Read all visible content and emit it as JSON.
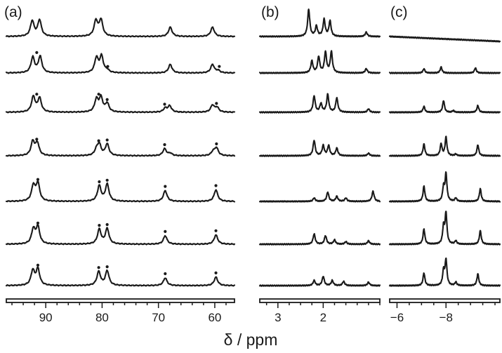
{
  "chart_data": [
    {
      "type": "line",
      "panel_label": "(a)",
      "x_range": [
        97,
        56.5
      ],
      "x_ticks": [
        90,
        80,
        70,
        60
      ],
      "tick_labels": [
        "90",
        "80",
        "70",
        "60"
      ],
      "series": [
        {
          "peaks": [
            [
              92.4,
              1.0
            ],
            [
              91.1,
              1.05
            ],
            [
              81.1,
              1.0
            ],
            [
              80.2,
              1.05
            ],
            [
              67.9,
              0.6
            ],
            [
              60.4,
              0.6
            ]
          ],
          "dots": []
        },
        {
          "peaks": [
            [
              92.3,
              1.0
            ],
            [
              91.0,
              1.05
            ],
            [
              81.0,
              0.95
            ],
            [
              80.1,
              1.05
            ],
            [
              79.1,
              0.15
            ],
            [
              67.9,
              0.55
            ],
            [
              60.4,
              0.55
            ],
            [
              59.4,
              0.15
            ]
          ],
          "dots": [
            91.6,
            79.0,
            59.2
          ]
        },
        {
          "peaks": [
            [
              92.2,
              1.0
            ],
            [
              91.1,
              0.9
            ],
            [
              81.0,
              0.8
            ],
            [
              80.2,
              0.9
            ],
            [
              79.1,
              0.55
            ],
            [
              68.8,
              0.25
            ],
            [
              68.0,
              0.4
            ],
            [
              60.4,
              0.45
            ],
            [
              59.6,
              0.3
            ]
          ],
          "dots": [
            91.6,
            80.6,
            79.1,
            68.9,
            59.7
          ]
        },
        {
          "peaks": [
            [
              92.3,
              0.9
            ],
            [
              91.5,
              0.8
            ],
            [
              81.0,
              0.35
            ],
            [
              80.5,
              0.7
            ],
            [
              79.1,
              0.75
            ],
            [
              68.9,
              0.45
            ],
            [
              67.9,
              0.15
            ],
            [
              60.3,
              0.25
            ],
            [
              59.7,
              0.5
            ]
          ],
          "dots": [
            91.6,
            80.6,
            79.1,
            68.9,
            59.7
          ]
        },
        {
          "peaks": [
            [
              92.2,
              1.0
            ],
            [
              91.4,
              1.15
            ],
            [
              80.5,
              1.0
            ],
            [
              79.1,
              1.1
            ],
            [
              68.8,
              0.7
            ],
            [
              59.8,
              0.75
            ]
          ],
          "dots": [
            91.4,
            80.5,
            79.1,
            68.8,
            59.8
          ]
        },
        {
          "peaks": [
            [
              92.2,
              0.95
            ],
            [
              91.4,
              1.1
            ],
            [
              80.5,
              0.95
            ],
            [
              79.1,
              1.0
            ],
            [
              68.8,
              0.55
            ],
            [
              59.8,
              0.6
            ]
          ],
          "dots": [
            91.4,
            80.5,
            79.1,
            68.8,
            59.8
          ]
        },
        {
          "peaks": [
            [
              92.3,
              0.95
            ],
            [
              91.4,
              1.05
            ],
            [
              80.6,
              0.9
            ],
            [
              79.1,
              0.95
            ],
            [
              68.8,
              0.5
            ],
            [
              59.8,
              0.55
            ]
          ],
          "dots": [
            91.4,
            80.6,
            79.1,
            68.8,
            59.8
          ]
        }
      ]
    },
    {
      "type": "line",
      "panel_label": "(b)",
      "x_range": [
        3.4,
        0.75
      ],
      "x_ticks": [
        3,
        2
      ],
      "tick_labels": [
        "3",
        "2"
      ],
      "series": [
        {
          "peaks": [
            [
              2.32,
              1.6
            ],
            [
              2.15,
              0.6
            ],
            [
              1.98,
              1.0
            ],
            [
              1.85,
              0.9
            ],
            [
              1.05,
              0.25
            ]
          ],
          "dots": []
        },
        {
          "peaks": [
            [
              2.25,
              0.7
            ],
            [
              2.1,
              0.95
            ],
            [
              1.95,
              1.2
            ],
            [
              1.82,
              1.25
            ],
            [
              1.05,
              0.25
            ]
          ],
          "dots": []
        },
        {
          "peaks": [
            [
              2.2,
              0.95
            ],
            [
              2.05,
              0.5
            ],
            [
              1.9,
              1.05
            ],
            [
              1.7,
              0.85
            ],
            [
              1.0,
              0.2
            ]
          ],
          "dots": []
        },
        {
          "peaks": [
            [
              2.2,
              0.9
            ],
            [
              2.0,
              0.6
            ],
            [
              1.88,
              0.6
            ],
            [
              1.7,
              0.45
            ],
            [
              1.0,
              0.15
            ]
          ],
          "dots": []
        },
        {
          "peaks": [
            [
              2.2,
              0.2
            ],
            [
              1.9,
              0.55
            ],
            [
              1.7,
              0.3
            ],
            [
              1.5,
              0.2
            ],
            [
              0.9,
              0.6
            ]
          ],
          "dots": []
        },
        {
          "peaks": [
            [
              2.2,
              0.6
            ],
            [
              1.95,
              0.5
            ],
            [
              1.75,
              0.25
            ],
            [
              1.5,
              0.15
            ],
            [
              1.0,
              0.2
            ]
          ],
          "dots": []
        },
        {
          "peaks": [
            [
              2.2,
              0.3
            ],
            [
              2.0,
              0.55
            ],
            [
              1.8,
              0.3
            ],
            [
              1.55,
              0.25
            ],
            [
              1.0,
              0.2
            ]
          ],
          "dots": []
        }
      ]
    },
    {
      "type": "line",
      "panel_label": "(c)",
      "x_range": [
        -5.7,
        -10.2
      ],
      "x_ticks": [
        -6,
        -8
      ],
      "tick_labels": [
        "−6",
        "−8"
      ],
      "series": [
        {
          "peaks": [],
          "dots": []
        },
        {
          "peaks": [
            [
              -7.1,
              0.25
            ],
            [
              -7.8,
              0.35
            ],
            [
              -9.2,
              0.3
            ]
          ],
          "dots": []
        },
        {
          "peaks": [
            [
              -7.1,
              0.35
            ],
            [
              -7.9,
              0.7
            ],
            [
              -8.3,
              0.1
            ],
            [
              -9.3,
              0.4
            ]
          ],
          "dots": []
        },
        {
          "peaks": [
            [
              -7.1,
              0.7
            ],
            [
              -7.8,
              0.7
            ],
            [
              -8.0,
              1.1
            ],
            [
              -8.4,
              0.1
            ],
            [
              -9.3,
              0.65
            ]
          ],
          "dots": []
        },
        {
          "peaks": [
            [
              -7.1,
              0.9
            ],
            [
              -7.9,
              0.8
            ],
            [
              -8.0,
              1.6
            ],
            [
              -8.4,
              0.2
            ],
            [
              -9.4,
              0.75
            ]
          ],
          "dots": []
        },
        {
          "peaks": [
            [
              -7.1,
              0.9
            ],
            [
              -7.9,
              1.0
            ],
            [
              -8.0,
              1.8
            ],
            [
              -8.4,
              0.2
            ],
            [
              -9.4,
              0.8
            ]
          ],
          "dots": []
        },
        {
          "peaks": [
            [
              -7.1,
              0.75
            ],
            [
              -7.9,
              0.85
            ],
            [
              -8.0,
              1.5
            ],
            [
              -8.4,
              0.2
            ],
            [
              -9.3,
              0.7
            ]
          ],
          "dots": []
        }
      ]
    }
  ],
  "x_axis_title": "δ / ppm"
}
